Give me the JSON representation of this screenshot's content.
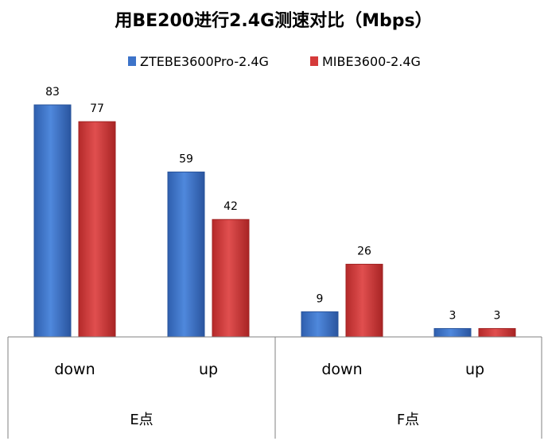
{
  "chart_data": {
    "type": "bar",
    "title": "用BE200进行2.4G测速对比（Mbps）",
    "groups": [
      {
        "label": "E点",
        "categories": [
          "down",
          "up"
        ]
      },
      {
        "label": "F点",
        "categories": [
          "down",
          "up"
        ]
      }
    ],
    "categories": [
      "down",
      "up",
      "down",
      "up"
    ],
    "series": [
      {
        "name": "ZTEBE3600Pro-2.4G",
        "color": "#3d73c9",
        "values": [
          83,
          59,
          9,
          3
        ]
      },
      {
        "name": "MIBE3600-2.4G",
        "color": "#d53a3a",
        "values": [
          77,
          42,
          26,
          3
        ]
      }
    ],
    "ylim": [
      0,
      90
    ],
    "grid": false,
    "legend": "top-center",
    "data_labels": true
  }
}
